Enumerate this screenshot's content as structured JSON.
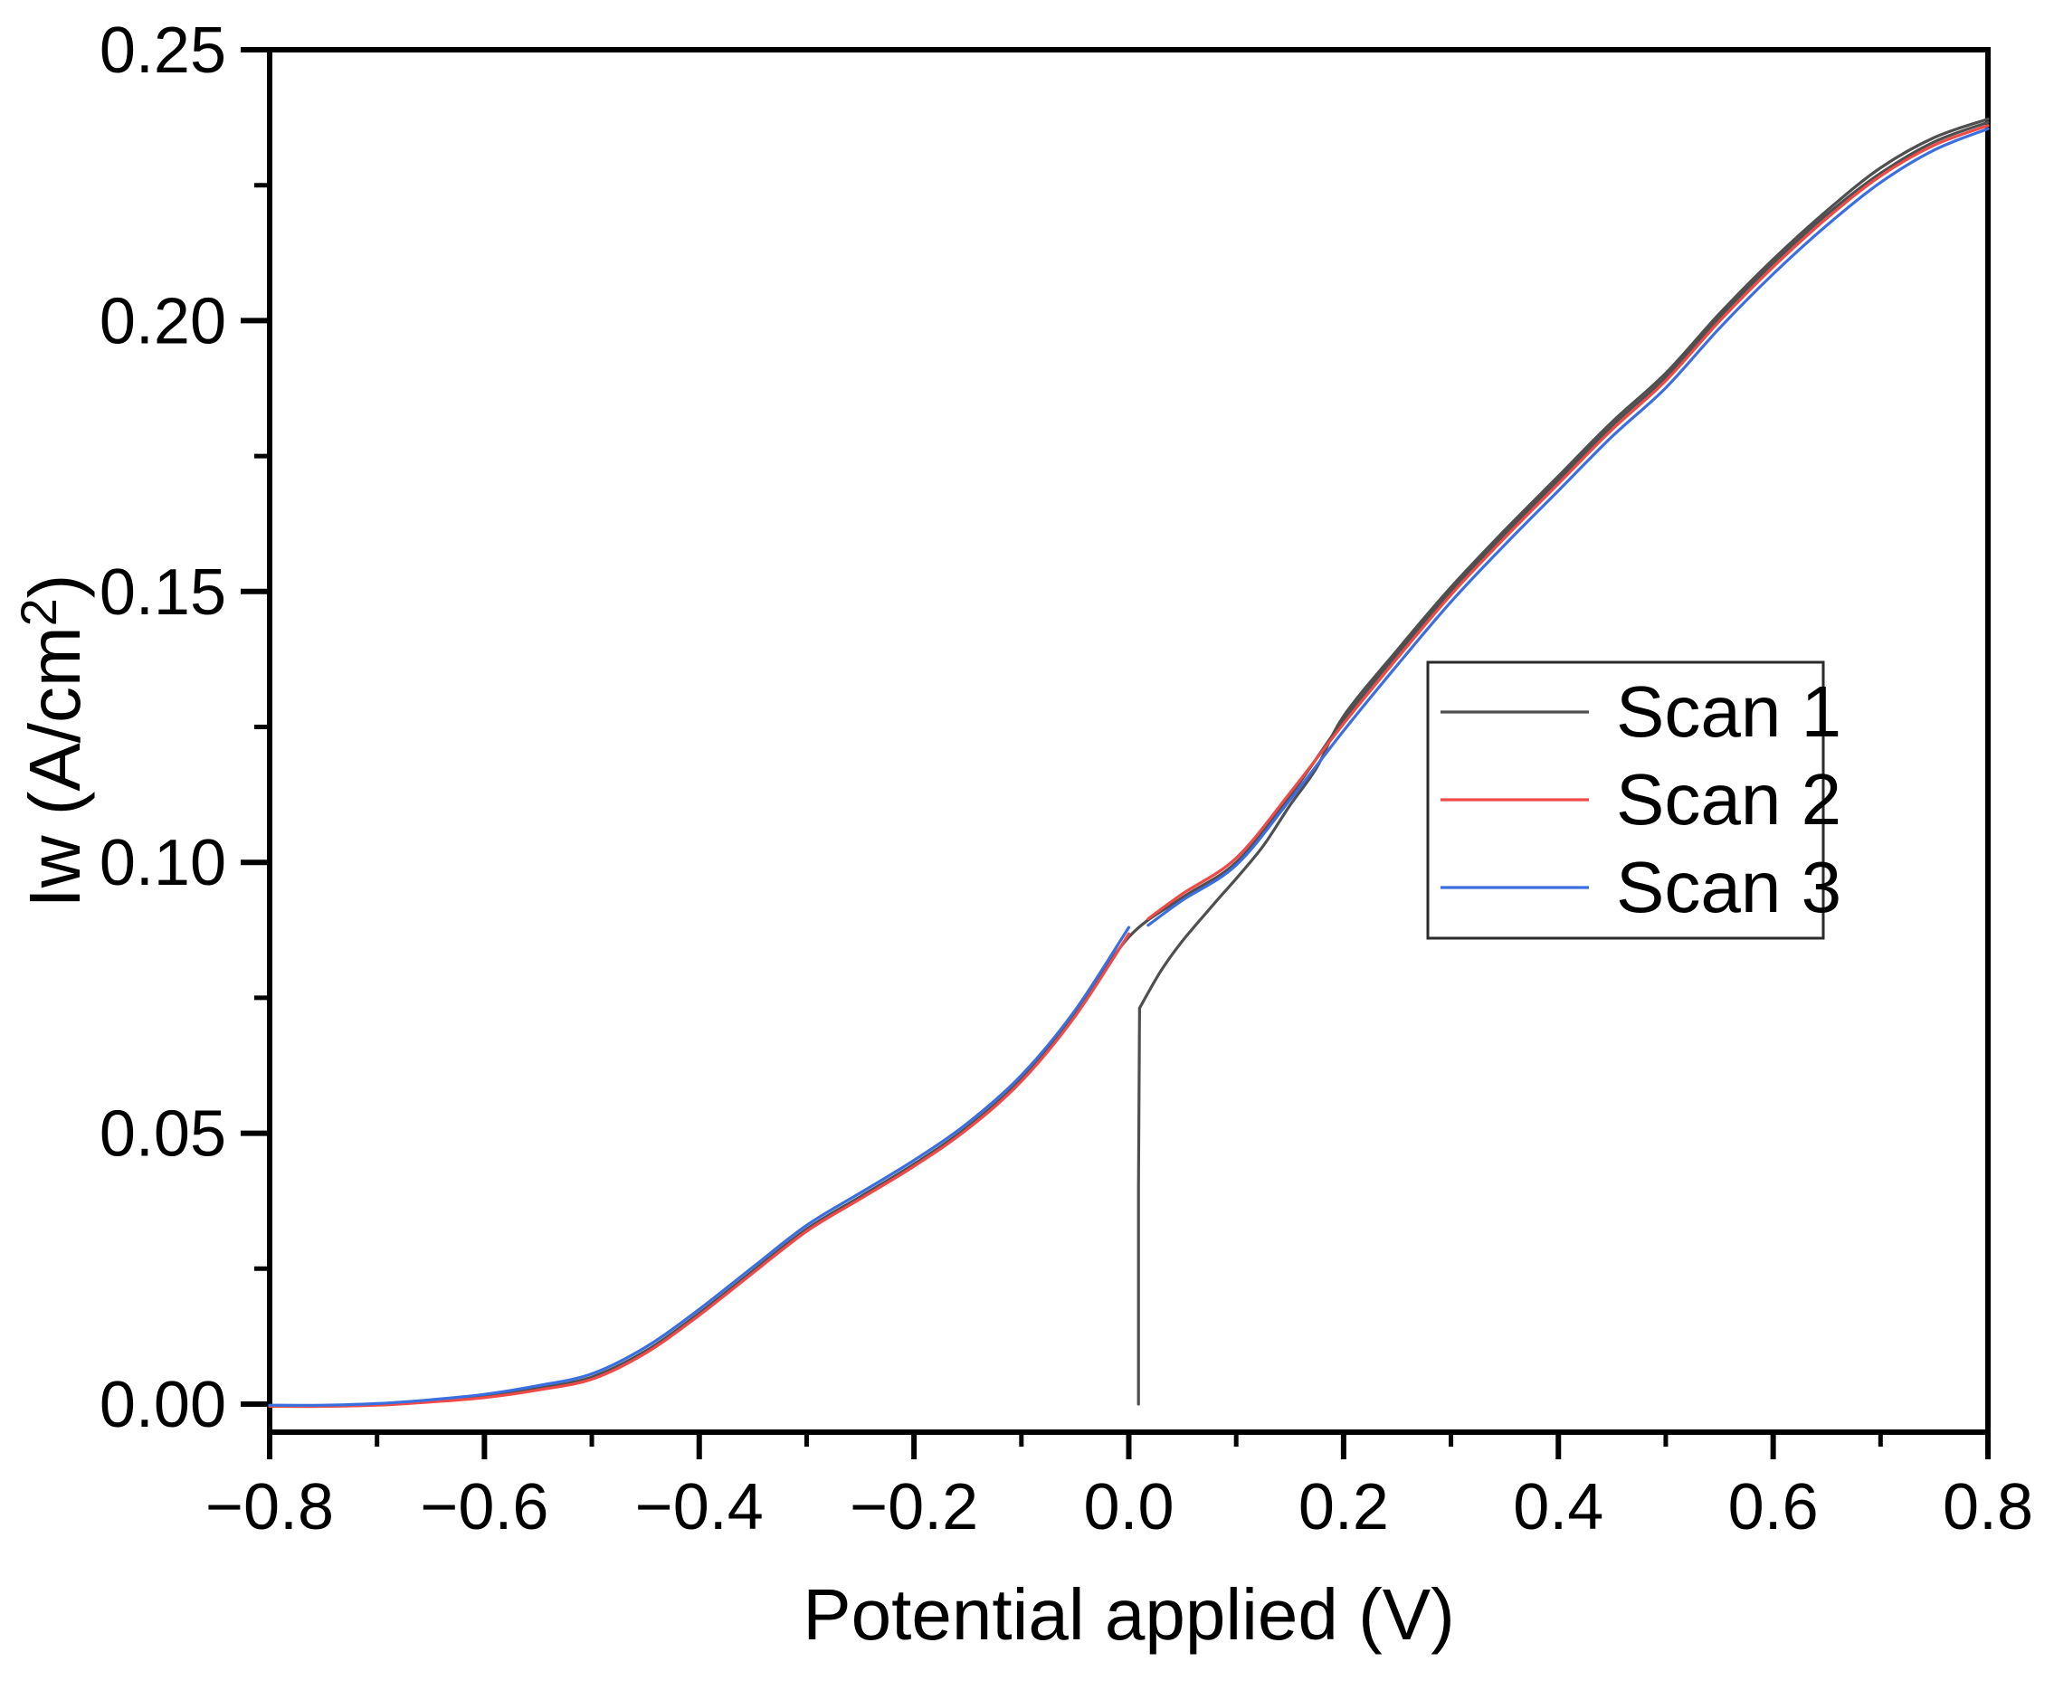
{
  "chart_data": {
    "type": "line",
    "title": "",
    "xlabel": "Potential applied (V)",
    "ylabel": {
      "prefix": "Iw (A/cm",
      "sup": "2",
      "suffix": ")"
    },
    "xlim": [
      -0.8,
      0.8
    ],
    "ylim": [
      -0.005,
      0.25
    ],
    "grid": false,
    "background": "#ffffff",
    "axis_color": "#000000",
    "x_major_ticks": {
      "values": [
        -0.8,
        -0.6,
        -0.4,
        -0.2,
        0.0,
        0.2,
        0.4,
        0.6,
        0.8
      ],
      "labels": [
        "−0.8",
        "−0.6",
        "−0.4",
        "−0.2",
        "0.0",
        "0.2",
        "0.4",
        "0.6",
        "0.8"
      ]
    },
    "x_minor_ticks": [
      -0.7,
      -0.5,
      -0.3,
      -0.1,
      0.1,
      0.3,
      0.5,
      0.7
    ],
    "y_major_ticks": {
      "values": [
        0.0,
        0.05,
        0.1,
        0.15,
        0.2,
        0.25
      ],
      "labels": [
        "0.00",
        "0.05",
        "0.10",
        "0.15",
        "0.20",
        "0.25"
      ]
    },
    "y_minor_ticks": [
      0.025,
      0.075,
      0.125,
      0.175,
      0.225
    ],
    "legend": {
      "position": "right-center",
      "border_color": "#2b2b2b",
      "entries": [
        {
          "label": "Scan 1",
          "color": "#4f4f4f"
        },
        {
          "label": "Scan 2",
          "color": "#f04a47"
        },
        {
          "label": "Scan 3",
          "color": "#3a6fe0"
        }
      ]
    },
    "series": [
      {
        "name": "Scan 1",
        "color": "#4f4f4f",
        "segments": [
          {
            "smooth": false,
            "points": [
              [
                0.009,
                0.0
              ],
              [
                0.009,
                0.04
              ],
              [
                0.01,
                0.0731
              ]
            ]
          },
          {
            "smooth": true,
            "points": [
              [
                0.01,
                0.0731
              ],
              [
                0.03,
                0.08
              ],
              [
                0.05,
                0.0855
              ],
              [
                0.08,
                0.0925
              ],
              [
                0.1,
                0.097
              ],
              [
                0.125,
                0.103
              ],
              [
                0.15,
                0.1105
              ],
              [
                0.175,
                0.1175
              ],
              [
                0.2,
                0.127
              ],
              [
                0.25,
                0.1392
              ],
              [
                0.3,
                0.1508
              ],
              [
                0.35,
                0.1613
              ],
              [
                0.4,
                0.1713
              ],
              [
                0.45,
                0.1813
              ],
              [
                0.5,
                0.1903
              ],
              [
                0.55,
                0.2013
              ],
              [
                0.6,
                0.2113
              ],
              [
                0.65,
                0.2203
              ],
              [
                0.7,
                0.2282
              ],
              [
                0.75,
                0.2338
              ],
              [
                0.8,
                0.2372
              ]
            ]
          },
          {
            "smooth": true,
            "points": [
              [
                0.8,
                0.2366
              ],
              [
                0.75,
                0.233
              ],
              [
                0.7,
                0.2272
              ],
              [
                0.65,
                0.2196
              ],
              [
                0.6,
                0.2106
              ],
              [
                0.55,
                0.2006
              ],
              [
                0.5,
                0.1896
              ],
              [
                0.45,
                0.1806
              ],
              [
                0.4,
                0.1706
              ],
              [
                0.35,
                0.1606
              ],
              [
                0.3,
                0.1501
              ],
              [
                0.25,
                0.1385
              ],
              [
                0.2,
                0.1263
              ],
              [
                0.15,
                0.1122
              ],
              [
                0.1,
                0.1
              ],
              [
                0.05,
                0.0935
              ],
              [
                0.0,
                0.0862
              ],
              [
                -0.05,
                0.072
              ],
              [
                -0.1,
                0.06
              ],
              [
                -0.15,
                0.0512
              ],
              [
                -0.2,
                0.0443
              ],
              [
                -0.25,
                0.0383
              ],
              [
                -0.3,
                0.0323
              ],
              [
                -0.35,
                0.0246
              ],
              [
                -0.4,
                0.0168
              ],
              [
                -0.45,
                0.0098
              ],
              [
                -0.5,
                0.005
              ],
              [
                -0.55,
                0.0029
              ],
              [
                -0.6,
                0.0014
              ],
              [
                -0.65,
                0.0005
              ],
              [
                -0.7,
                -0.0001
              ],
              [
                -0.75,
                -0.0004
              ],
              [
                -0.8,
                -0.0004
              ]
            ]
          }
        ]
      },
      {
        "name": "Scan 2",
        "color": "#f04a47",
        "segments": [
          {
            "smooth": true,
            "points": [
              [
                -0.8,
                -0.0004
              ],
              [
                -0.75,
                -0.0004
              ],
              [
                -0.7,
                -0.0002
              ],
              [
                -0.65,
                0.0004
              ],
              [
                -0.6,
                0.0012
              ],
              [
                -0.55,
                0.0026
              ],
              [
                -0.5,
                0.0046
              ],
              [
                -0.45,
                0.0094
              ],
              [
                -0.4,
                0.0164
              ],
              [
                -0.35,
                0.0242
              ],
              [
                -0.3,
                0.0319
              ],
              [
                -0.25,
                0.0379
              ],
              [
                -0.2,
                0.0439
              ],
              [
                -0.15,
                0.0508
              ],
              [
                -0.1,
                0.0596
              ],
              [
                -0.05,
                0.0716
              ],
              [
                0.0,
                0.0868
              ]
            ]
          },
          {
            "smooth": true,
            "points": [
              [
                0.018,
                0.0896
              ],
              [
                0.05,
                0.0942
              ],
              [
                0.1,
                0.1008
              ],
              [
                0.15,
                0.1128
              ],
              [
                0.2,
                0.1256
              ],
              [
                0.25,
                0.1377
              ],
              [
                0.3,
                0.1494
              ],
              [
                0.35,
                0.1599
              ],
              [
                0.4,
                0.1699
              ],
              [
                0.45,
                0.1799
              ],
              [
                0.5,
                0.1889
              ],
              [
                0.55,
                0.1999
              ],
              [
                0.6,
                0.2099
              ],
              [
                0.65,
                0.2189
              ],
              [
                0.7,
                0.2267
              ],
              [
                0.75,
                0.2324
              ],
              [
                0.8,
                0.236
              ]
            ]
          }
        ]
      },
      {
        "name": "Scan 3",
        "color": "#3a6fe0",
        "segments": [
          {
            "smooth": true,
            "points": [
              [
                -0.8,
                -0.0002
              ],
              [
                -0.75,
                -0.0002
              ],
              [
                -0.7,
                0.0001
              ],
              [
                -0.65,
                0.0008
              ],
              [
                -0.6,
                0.0018
              ],
              [
                -0.55,
                0.0034
              ],
              [
                -0.5,
                0.0056
              ],
              [
                -0.45,
                0.0105
              ],
              [
                -0.4,
                0.0175
              ],
              [
                -0.35,
                0.0253
              ],
              [
                -0.3,
                0.033
              ],
              [
                -0.25,
                0.039
              ],
              [
                -0.2,
                0.045
              ],
              [
                -0.15,
                0.0519
              ],
              [
                -0.1,
                0.0607
              ],
              [
                -0.05,
                0.0727
              ],
              [
                0.0,
                0.088
              ]
            ]
          },
          {
            "smooth": true,
            "points": [
              [
                0.018,
                0.0884
              ],
              [
                0.05,
                0.093
              ],
              [
                0.1,
                0.0995
              ],
              [
                0.15,
                0.1115
              ],
              [
                0.2,
                0.1243
              ],
              [
                0.25,
                0.1364
              ],
              [
                0.3,
                0.1481
              ],
              [
                0.35,
                0.1586
              ],
              [
                0.4,
                0.1686
              ],
              [
                0.45,
                0.1786
              ],
              [
                0.5,
                0.1876
              ],
              [
                0.55,
                0.1986
              ],
              [
                0.6,
                0.2086
              ],
              [
                0.65,
                0.2176
              ],
              [
                0.7,
                0.2255
              ],
              [
                0.75,
                0.2315
              ],
              [
                0.8,
                0.2354
              ]
            ]
          }
        ]
      }
    ]
  }
}
